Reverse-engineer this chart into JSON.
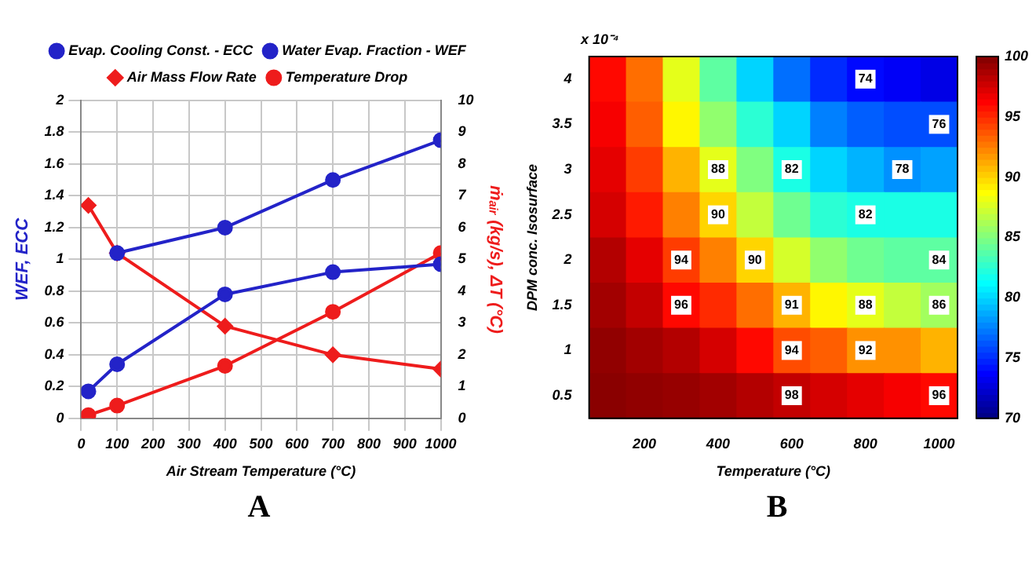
{
  "chart_data": [
    {
      "type": "line",
      "xlabel": "Air Stream Temperature (°C)",
      "ylabel": "WEF, ECC",
      "y2label": "ṁₐᵢᵣ (kg/s), ΔT (°C)",
      "annotations": [
        "A"
      ],
      "x": [
        20,
        100,
        400,
        700,
        1000
      ],
      "series": [
        {
          "name": "Evap. Cooling Const. - ECC",
          "color": "#2323c8",
          "values": [
            null,
            1.04,
            1.2,
            1.5,
            1.75
          ],
          "marker": "circle"
        },
        {
          "name": "Water Evap. Fraction - WEF",
          "color": "#2323c8",
          "values": [
            0.17,
            0.34,
            0.78,
            0.92,
            0.97
          ],
          "marker": "circle"
        },
        {
          "name": "Air Mass Flow Rate",
          "color": "#ee1c1c",
          "values": [
            6.7,
            5.2,
            2.9,
            2.0,
            1.55
          ],
          "axis": "y2",
          "marker": "diamond"
        },
        {
          "name": "Temperature Drop",
          "color": "#ee1c1c",
          "values": [
            0.1,
            0.4,
            1.65,
            3.35,
            5.2
          ],
          "axis": "y2",
          "marker": "circle"
        }
      ],
      "xlim": [
        0,
        1000
      ],
      "xticks": [
        0,
        100,
        200,
        300,
        400,
        500,
        600,
        700,
        800,
        900,
        1000
      ],
      "ylim": [
        0,
        2
      ],
      "yticks": [
        0,
        0.2,
        0.4,
        0.6,
        0.8,
        1,
        1.2,
        1.4,
        1.6,
        1.8,
        2
      ],
      "y2lim": [
        0,
        10
      ],
      "y2ticks": [
        0,
        1,
        2,
        3,
        4,
        5,
        6,
        7,
        8,
        9,
        10
      ],
      "grid": true,
      "legend": "top"
    },
    {
      "type": "heatmap",
      "xlabel": "Temperature (°C)",
      "ylabel": "DPM conc. Isosurface",
      "annotations": [
        "x 10⁻⁴",
        "B"
      ],
      "categories": [
        null,
        "200",
        null,
        "400",
        null,
        "600",
        null,
        "800",
        null,
        "1000"
      ],
      "y_categories": [
        "4",
        "3.5",
        "3",
        "2.5",
        "2",
        "1.5",
        "1",
        "0.5"
      ],
      "cells": [
        [
          96,
          93,
          88,
          84,
          80,
          77,
          75,
          74,
          73.5,
          73
        ],
        [
          96.5,
          93.5,
          89,
          85.5,
          82.5,
          80,
          77.5,
          76.5,
          76,
          76
        ],
        [
          97,
          94.5,
          91,
          88,
          85,
          82,
          80,
          79,
          78,
          78.5
        ],
        [
          97.5,
          95.5,
          92.5,
          90,
          87,
          84.5,
          82.5,
          82,
          82,
          82
        ],
        [
          98.5,
          97,
          94.5,
          92.5,
          90,
          87.5,
          85.5,
          84.5,
          84,
          84
        ],
        [
          99,
          98,
          96,
          95,
          93,
          91,
          89,
          88,
          87,
          86
        ],
        [
          99.5,
          99,
          98.5,
          97.5,
          96,
          94,
          93.5,
          92,
          92,
          91
        ],
        [
          99.7,
          99.5,
          99.3,
          99,
          98.5,
          98,
          97.5,
          97,
          96.5,
          96
        ]
      ],
      "cell_labels": [
        [
          null,
          null,
          null,
          null,
          null,
          null,
          null,
          "74",
          null,
          null
        ],
        [
          null,
          null,
          null,
          null,
          null,
          null,
          null,
          null,
          null,
          "76"
        ],
        [
          null,
          null,
          null,
          "88",
          null,
          "82",
          null,
          null,
          "78",
          null
        ],
        [
          null,
          null,
          null,
          "90",
          null,
          null,
          null,
          "82",
          null,
          null
        ],
        [
          null,
          null,
          "94",
          null,
          "90",
          null,
          null,
          null,
          null,
          "84"
        ],
        [
          null,
          null,
          "96",
          null,
          null,
          "91",
          null,
          "88",
          null,
          "86"
        ],
        [
          null,
          null,
          null,
          null,
          null,
          "94",
          null,
          "92",
          null,
          null
        ],
        [
          null,
          null,
          null,
          null,
          null,
          "98",
          null,
          null,
          null,
          "96"
        ]
      ],
      "clim": [
        70,
        100
      ],
      "cticks": [
        70,
        75,
        80,
        85,
        90,
        95,
        100
      ]
    }
  ]
}
